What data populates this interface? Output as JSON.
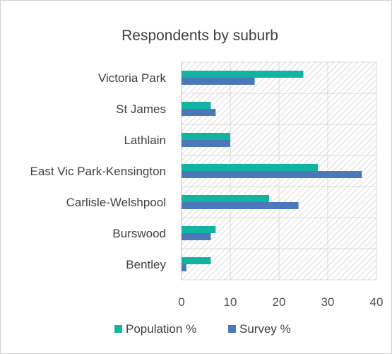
{
  "chart_data": {
    "type": "bar",
    "orientation": "horizontal",
    "title": "Respondents by suburb",
    "categories": [
      "Victoria Park",
      "St James",
      "Lathlain",
      "East Vic Park-Kensington",
      "Carlisle-Welshpool",
      "Burswood",
      "Bentley"
    ],
    "series": [
      {
        "name": "Population %",
        "color": "#13b3a1",
        "values": [
          25,
          6,
          10,
          28,
          18,
          7,
          6
        ]
      },
      {
        "name": "Survey %",
        "color": "#4a78b9",
        "values": [
          15,
          7,
          10,
          37,
          24,
          6,
          1
        ]
      }
    ],
    "xlim": [
      0,
      40
    ],
    "xticks": [
      0,
      10,
      20,
      30,
      40
    ],
    "grid": true,
    "legend": "bottom"
  }
}
